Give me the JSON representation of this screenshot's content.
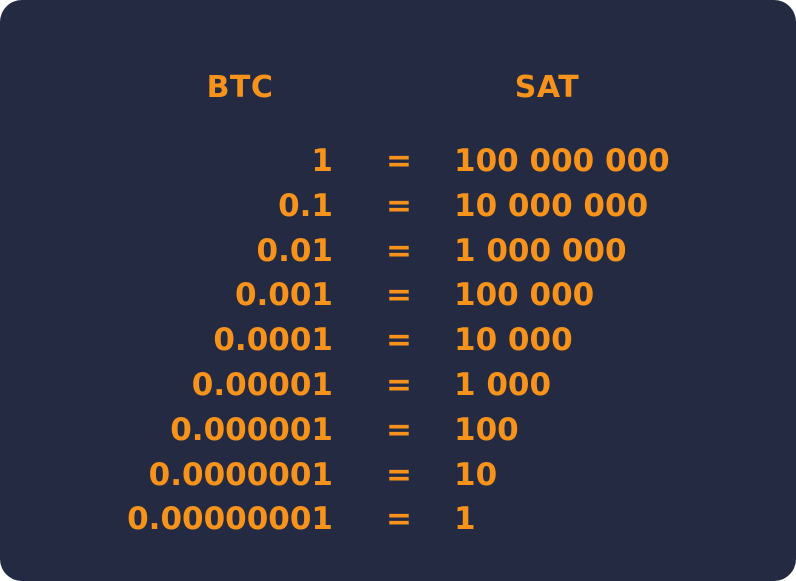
{
  "headers": {
    "btc": "BTC",
    "sat": "SAT"
  },
  "rows": [
    {
      "btc": "1",
      "eq": "=",
      "sat": "100 000 000"
    },
    {
      "btc": "0.1",
      "eq": "=",
      "sat": "10 000 000"
    },
    {
      "btc": "0.01",
      "eq": "=",
      "sat": "1 000 000"
    },
    {
      "btc": "0.001",
      "eq": "=",
      "sat": "100 000"
    },
    {
      "btc": "0.0001",
      "eq": "=",
      "sat": "10 000"
    },
    {
      "btc": "0.00001",
      "eq": "=",
      "sat": "1 000"
    },
    {
      "btc": "0.000001",
      "eq": "=",
      "sat": "100"
    },
    {
      "btc": "0.0000001",
      "eq": "=",
      "sat": "10"
    },
    {
      "btc": "0.00000001",
      "eq": "=",
      "sat": "1"
    }
  ],
  "colors": {
    "background": "#232a42",
    "text": "#f7931a"
  }
}
